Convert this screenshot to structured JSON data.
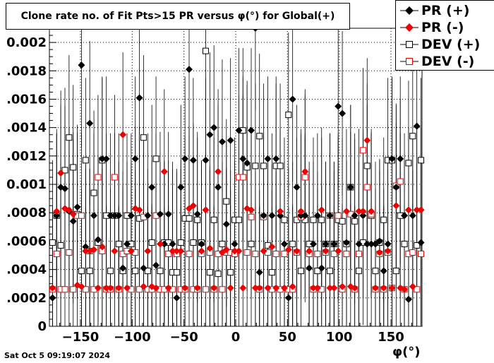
{
  "chart_data": {
    "type": "scatter",
    "title": "Clone rate no. of Fit Pts>15 PR versus φ(°) for Global(+)",
    "xlabel": "φ(°)",
    "ylabel": "",
    "xlim": [
      -180,
      180
    ],
    "ylim": [
      0,
      0.0021
    ],
    "xticks": [
      -150,
      -100,
      -50,
      0,
      50,
      100,
      150
    ],
    "xtick_labels": [
      "−150",
      "−100",
      "−50",
      "0",
      "50",
      "100",
      "150"
    ],
    "yticks": [
      0,
      0.0002,
      0.0004,
      0.0006,
      0.0008,
      0.001,
      0.0012,
      0.0014,
      0.0016,
      0.0018,
      0.002
    ],
    "ytick_labels": [
      "0",
      ".0002",
      ".0004",
      ".0006",
      ".0008",
      "0.001",
      ".0012",
      ".0014",
      ".0016",
      ".0018",
      "0.002"
    ],
    "grid": true,
    "legend_position": "top-right",
    "x": [
      -177,
      -173,
      -169,
      -165,
      -161,
      -157,
      -153,
      -149,
      -145,
      -141,
      -137,
      -133,
      -129,
      -125,
      -121,
      -117,
      -113,
      -109,
      -105,
      -101,
      -97,
      -93,
      -89,
      -85,
      -81,
      -77,
      -73,
      -69,
      -65,
      -61,
      -57,
      -53,
      -49,
      -45,
      -41,
      -37,
      -33,
      -29,
      -25,
      -21,
      -17,
      -13,
      -9,
      -5,
      -1,
      3,
      7,
      11,
      15,
      19,
      23,
      27,
      31,
      35,
      39,
      43,
      47,
      51,
      55,
      59,
      63,
      67,
      71,
      75,
      79,
      83,
      87,
      91,
      95,
      99,
      103,
      107,
      111,
      115,
      119,
      123,
      127,
      131,
      135,
      139,
      143,
      147,
      151,
      155,
      159,
      163,
      167,
      171,
      175,
      179
    ],
    "series": [
      {
        "name": "PR (+)",
        "color": "#000000",
        "marker": "diamond-filled",
        "values": [
          0.0002,
          0.00078,
          0.00098,
          0.00097,
          0.00081,
          0.00074,
          0.00084,
          0.00184,
          0.00056,
          0.00143,
          0.00078,
          0.00061,
          0.00118,
          0.00118,
          0.00078,
          0.00078,
          0.00078,
          0.00041,
          0.00058,
          0.00078,
          0.00118,
          0.00161,
          0.00041,
          0.00078,
          0.00098,
          0.00043,
          0.00079,
          0.00058,
          0.00079,
          0.00058,
          0.0002,
          0.00098,
          0.00118,
          0.00181,
          0.00117,
          0.00079,
          0.00058,
          0.00117,
          0.00135,
          0.0014,
          0.00098,
          0.0013,
          0.00072,
          0.00131,
          0.00058,
          0.00138,
          0.00118,
          0.00115,
          0.00138,
          0.0021,
          0.00038,
          0.00078,
          0.00118,
          0.00078,
          0.00118,
          0.00078,
          0.00058,
          0.0002,
          0.0016,
          0.00098,
          0.00078,
          0.00078,
          0.00041,
          0.00058,
          0.00078,
          0.00041,
          0.00058,
          0.00078,
          0.00058,
          0.00155,
          0.0015,
          0.00059,
          0.00098,
          0.00078,
          0.00058,
          0.00078,
          0.00058,
          0.00058,
          0.00058,
          0.0006,
          0.00039,
          0.00058,
          0.00118,
          0.00098,
          0.00118,
          0.00078,
          0.00019,
          0.00078,
          0.00141,
          0.00059
        ]
      },
      {
        "name": "PR (-)",
        "color": "#ee0000",
        "marker": "diamond-filled",
        "values": [
          0.00027,
          0.00081,
          0.00108,
          0.00083,
          0.00082,
          0.00079,
          0.00029,
          0.00028,
          0.00053,
          0.00053,
          0.00054,
          0.00027,
          0.00056,
          0.00027,
          0.00027,
          0.00053,
          0.00027,
          0.00135,
          0.00027,
          0.00053,
          0.00083,
          0.00082,
          0.00028,
          0.00053,
          0.00028,
          0.00027,
          0.00058,
          0.00109,
          0.00027,
          0.00053,
          0.00053,
          0.00053,
          0.00027,
          0.00083,
          0.00085,
          0.00027,
          0.00053,
          0.00082,
          0.00055,
          0.00027,
          0.00109,
          0.00052,
          0.00054,
          0.00027,
          0.00053,
          0.00053,
          0.00027,
          0.00083,
          0.00082,
          0.00027,
          0.00027,
          0.00053,
          0.00027,
          0.00056,
          0.00027,
          0.00081,
          0.00027,
          0.00054,
          0.00028,
          0.00053,
          0.00081,
          0.00109,
          0.00053,
          0.00027,
          0.00027,
          0.00082,
          0.00053,
          0.00027,
          0.00027,
          0.00053,
          0.00028,
          0.00081,
          0.00028,
          0.00027,
          0.00081,
          0.00081,
          0.00131,
          0.00081,
          0.00027,
          0.00052,
          0.00027,
          0.00053,
          0.00027,
          0.00085,
          0.00027,
          0.00026,
          0.00082,
          0.00028,
          0.00082,
          0.00082
        ]
      }
    ],
    "series_dev": [
      {
        "name": "DEV (+)",
        "color": "#000000",
        "marker": "square-open",
        "values": [
          0.00059,
          0.00078,
          0.00057,
          0.0011,
          0.00133,
          0.00112,
          0.00079,
          0.00039,
          0.00117,
          0.00039,
          0.00094,
          0.00059,
          0.00117,
          0.00078,
          0.00039,
          0.00078,
          0.00058,
          0.00039,
          0.00078,
          0.00058,
          0.00039,
          0.00076,
          0.00133,
          0.00039,
          0.00059,
          0.00118,
          0.00039,
          0.00059,
          0.00059,
          0.00038,
          0.00038,
          0.00059,
          0.00076,
          0.00076,
          0.00059,
          0.00075,
          0.00059,
          0.00194,
          0.00038,
          0.00075,
          0.00037,
          0.00058,
          0.00088,
          0.00038,
          0.00075,
          0.00075,
          0.00138,
          0.00112,
          0.00058,
          0.00113,
          0.00134,
          0.00113,
          0.00057,
          0.00038,
          0.00113,
          0.00113,
          0.00075,
          0.00149,
          0.00058,
          0.00075,
          0.00039,
          0.00075,
          0.00058,
          0.00075,
          0.00039,
          0.00075,
          0.00058,
          0.00039,
          0.00058,
          0.00075,
          0.00074,
          0.00058,
          0.00098,
          0.00074,
          0.00039,
          0.00059,
          0.00113,
          0.00078,
          0.00039,
          0.00059,
          0.00075,
          0.00117,
          0.00117,
          0.00039,
          0.00078,
          0.00058,
          0.00115,
          0.00134,
          0.00057,
          0.00117
        ]
      },
      {
        "name": "DEV (-)",
        "color": "#ee0000",
        "marker": "square-open",
        "values": [
          0.00026,
          0.00051,
          0.00026,
          0.00026,
          0.00052,
          0.00026,
          0.00078,
          0.00078,
          0.00026,
          0.00053,
          0.00026,
          0.00105,
          0.00053,
          0.00026,
          0.00026,
          0.00105,
          0.00026,
          0.00051,
          0.00053,
          0.00026,
          0.00052,
          0.00026,
          0.00077,
          0.00026,
          0.00026,
          0.00078,
          0.00026,
          0.00026,
          0.00051,
          0.00026,
          0.00051,
          0.00026,
          0.00026,
          0.00051,
          0.00026,
          0.00026,
          0.00051,
          0.00026,
          0.00052,
          0.00026,
          0.00051,
          0.00026,
          0.00052,
          0.00052,
          0.00051,
          0.00105,
          0.00105,
          0.00052,
          0.00077,
          0.00051,
          0.00026,
          0.00077,
          0.00052,
          0.00026,
          0.00051,
          0.00026,
          0.00051,
          0.00026,
          0.00026,
          0.00052,
          0.00077,
          0.00105,
          0.00051,
          0.00026,
          0.00051,
          0.00026,
          0.00052,
          0.00078,
          0.00051,
          0.00078,
          0.00026,
          0.00051,
          0.00079,
          0.00026,
          0.00051,
          0.00124,
          0.00098,
          0.00079,
          0.00026,
          0.00051,
          0.00026,
          0.00052,
          0.00027,
          0.00099,
          0.00102,
          0.00026,
          0.00051,
          0.00052,
          0.00026,
          0.00051
        ]
      }
    ],
    "error_bar_half_width": 0.00058
  },
  "legend": {
    "pr_plus": "PR (+)",
    "pr_minus": "PR (-)",
    "dev_plus": "DEV (+)",
    "dev_minus": "DEV (-)"
  },
  "timestamp": "Sat Oct  5 09:19:07 2024"
}
